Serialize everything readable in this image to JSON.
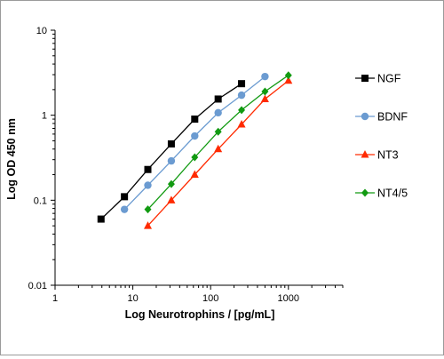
{
  "chart_data": {
    "type": "line",
    "title": "",
    "xlabel": "Log Neurotrophins / [pg/mL]",
    "ylabel": "Log OD 450 nm",
    "x_scale": "log",
    "y_scale": "log",
    "xlim": [
      1,
      5000
    ],
    "ylim": [
      0.01,
      10
    ],
    "x_ticks": [
      "1",
      "10",
      "100",
      "1000"
    ],
    "y_ticks": [
      "0.01",
      "0.1",
      "1",
      "10"
    ],
    "grid": false,
    "legend_position": "right",
    "series": [
      {
        "name": "NGF",
        "color": "#000000",
        "marker": "square",
        "x": [
          3.9,
          7.8,
          15.6,
          31.25,
          62.5,
          125,
          250
        ],
        "y": [
          0.06,
          0.11,
          0.23,
          0.46,
          0.9,
          1.55,
          2.35
        ]
      },
      {
        "name": "BDNF",
        "color": "#6b9bd1",
        "marker": "circle",
        "x": [
          7.8,
          15.6,
          31.25,
          62.5,
          125,
          250,
          500
        ],
        "y": [
          0.078,
          0.15,
          0.29,
          0.57,
          1.07,
          1.72,
          2.85
        ]
      },
      {
        "name": "NT3",
        "color": "#ff2a00",
        "marker": "triangle",
        "x": [
          15.6,
          31.25,
          62.5,
          125,
          250,
          500,
          1000
        ],
        "y": [
          0.05,
          0.1,
          0.2,
          0.4,
          0.78,
          1.55,
          2.55
        ]
      },
      {
        "name": "NT4/5",
        "color": "#119a11",
        "marker": "diamond",
        "x": [
          15.6,
          31.25,
          62.5,
          125,
          250,
          500,
          1000
        ],
        "y": [
          0.078,
          0.155,
          0.32,
          0.64,
          1.15,
          1.9,
          2.95
        ]
      }
    ]
  }
}
